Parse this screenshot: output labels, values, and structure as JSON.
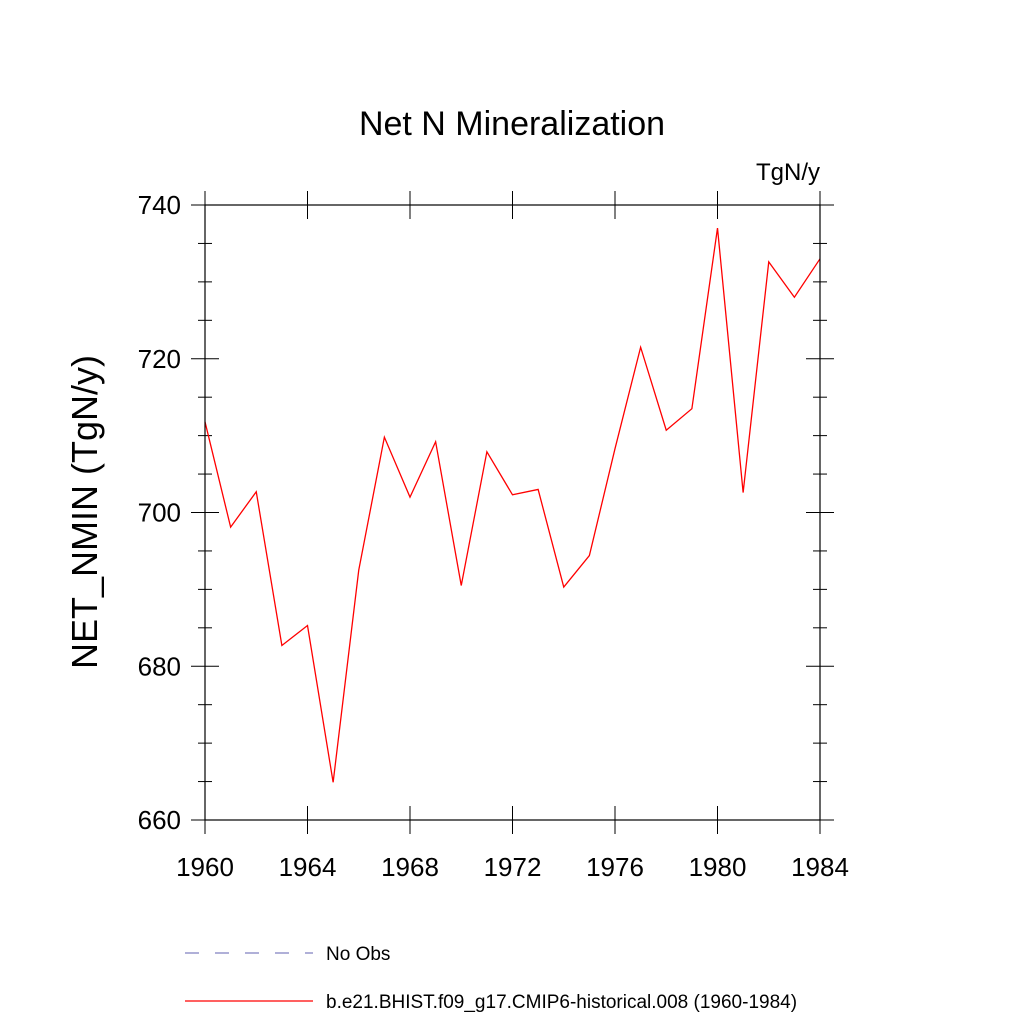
{
  "chart_data": {
    "type": "line",
    "title": "Net N Mineralization",
    "units_label": "TgN/y",
    "ylabel": "NET_NMIN  (TgN/y)",
    "xlabel": "",
    "xlim": [
      1960,
      1984
    ],
    "ylim": [
      660,
      740
    ],
    "x_ticks": [
      1960,
      1964,
      1968,
      1972,
      1976,
      1980,
      1984
    ],
    "y_ticks": [
      660,
      680,
      700,
      720,
      740
    ],
    "grid": false,
    "legend_position": "bottom",
    "series": [
      {
        "name": "b.e21.BHIST.f09_g17.CMIP6-historical.008 (1960-1984)",
        "color": "#ff0000",
        "style": "solid",
        "x": [
          1960,
          1961,
          1962,
          1963,
          1964,
          1965,
          1966,
          1967,
          1968,
          1969,
          1970,
          1971,
          1972,
          1973,
          1974,
          1975,
          1976,
          1977,
          1978,
          1979,
          1980,
          1981,
          1982,
          1983,
          1984
        ],
        "values": [
          711.8,
          698.1,
          702.7,
          682.7,
          685.3,
          664.9,
          692.5,
          709.8,
          702.0,
          709.2,
          690.5,
          707.9,
          702.3,
          703.0,
          690.3,
          694.4,
          708.3,
          721.5,
          710.7,
          713.5,
          737.0,
          702.6,
          732.6,
          728.0,
          733.0
        ]
      }
    ],
    "legend": [
      {
        "label": "No Obs",
        "color": "#8080c0",
        "style": "dashed"
      },
      {
        "label": "b.e21.BHIST.f09_g17.CMIP6-historical.008 (1960-1984)",
        "color": "#ff0000",
        "style": "solid"
      }
    ]
  }
}
